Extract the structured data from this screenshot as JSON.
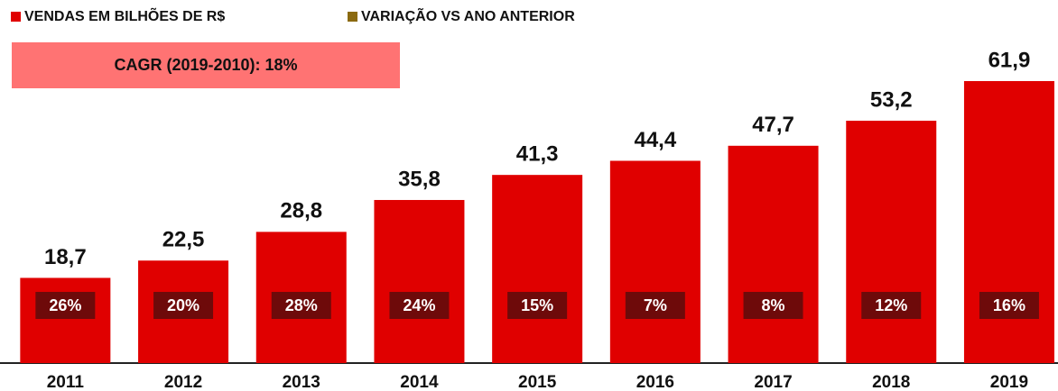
{
  "chart_data": {
    "type": "bar",
    "annotation": "CAGR (2019-2010): 18%",
    "categories": [
      "2011",
      "2012",
      "2013",
      "2014",
      "2015",
      "2016",
      "2017",
      "2018",
      "2019"
    ],
    "series": [
      {
        "name": "VENDAS EM BILHÕES DE R$",
        "color": "#e00000",
        "values": [
          18.7,
          22.5,
          28.8,
          35.8,
          41.3,
          44.4,
          47.7,
          53.2,
          61.9
        ],
        "value_labels": [
          "18,7",
          "22,5",
          "28,8",
          "35,8",
          "41,3",
          "44,4",
          "47,7",
          "53,2",
          "61,9"
        ]
      },
      {
        "name": "VARIAÇÃO VS ANO ANTERIOR",
        "color": "#8b6a10",
        "values": [
          26,
          20,
          28,
          24,
          15,
          7,
          8,
          12,
          16
        ],
        "value_labels": [
          "26%",
          "20%",
          "28%",
          "24%",
          "15%",
          "7%",
          "8%",
          "12%",
          "16%"
        ]
      }
    ]
  }
}
